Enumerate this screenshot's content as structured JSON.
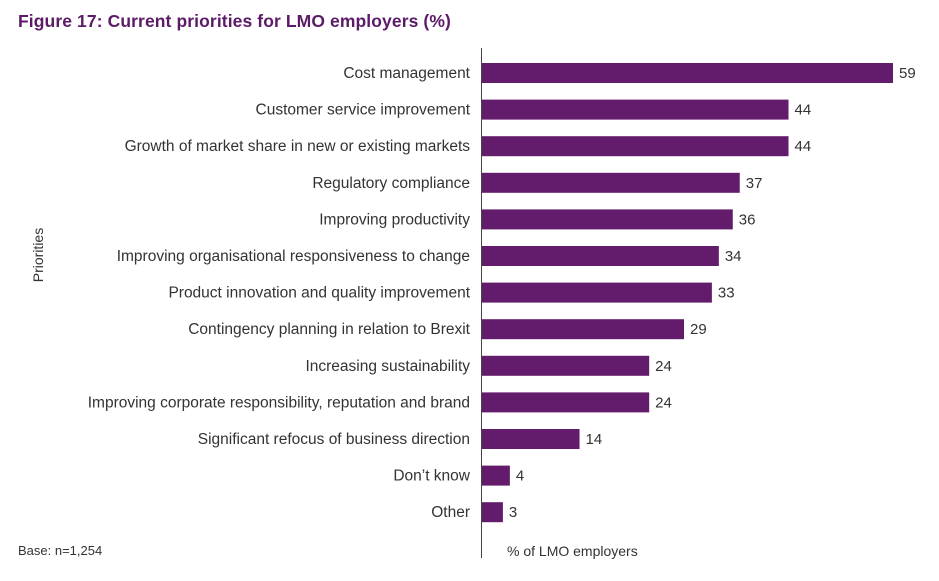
{
  "colors": {
    "bar": "#631c6b",
    "title": "#5c1a68",
    "text": "#333333",
    "axis": "#444444"
  },
  "chart_data": {
    "type": "bar",
    "orientation": "horizontal",
    "title": "Figure 17: Current priorities for LMO employers (%)",
    "xlabel": "% of LMO employers",
    "ylabel": "Priorities",
    "note": "Base: n=1,254",
    "categories": [
      "Cost management",
      "Customer service improvement",
      "Growth of market share in new or existing markets",
      "Regulatory compliance",
      "Improving productivity",
      "Improving organisational responsiveness to change",
      "Product innovation and quality improvement",
      "Contingency planning in relation to Brexit",
      "Increasing sustainability",
      "Improving corporate responsibility, reputation and brand",
      "Significant refocus of business direction",
      "Don’t know",
      "Other"
    ],
    "values": [
      59,
      44,
      44,
      37,
      36,
      34,
      33,
      29,
      24,
      24,
      14,
      4,
      3
    ],
    "xlim": [
      0,
      59
    ],
    "grid": false,
    "legend": "none"
  }
}
